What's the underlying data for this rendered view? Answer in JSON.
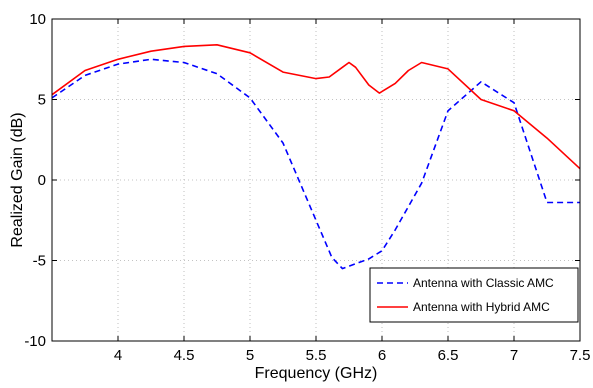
{
  "chart_data": {
    "type": "line",
    "title": "",
    "xlabel": "Frequency (GHz)",
    "ylabel": "Realized Gain (dB)",
    "xlim": [
      3.5,
      7.5
    ],
    "ylim": [
      -10,
      10
    ],
    "xticks": [
      "4",
      "4.5",
      "5",
      "5.5",
      "6",
      "6.5",
      "7",
      "7.5"
    ],
    "yticks": [
      "10",
      "5",
      "0",
      "-5",
      "-10"
    ],
    "grid": true,
    "legend_position": "bottom-right",
    "series": [
      {
        "name": "Antenna with Classic AMC",
        "color": "#0000ff",
        "dash": "dashed",
        "x": [
          3.5,
          3.75,
          4.0,
          4.25,
          4.5,
          4.75,
          5.0,
          5.25,
          5.5,
          5.62,
          5.7,
          5.8,
          5.9,
          6.0,
          6.1,
          6.3,
          6.5,
          6.75,
          7.0,
          7.25,
          7.5
        ],
        "y": [
          5.1,
          6.5,
          7.2,
          7.5,
          7.3,
          6.6,
          5.1,
          2.3,
          -2.5,
          -4.8,
          -5.5,
          -5.2,
          -4.9,
          -4.4,
          -3.1,
          -0.2,
          4.3,
          6.1,
          4.8,
          -1.4,
          -1.4
        ]
      },
      {
        "name": "Antenna with Hybrid AMC",
        "color": "#ff0000",
        "dash": "solid",
        "x": [
          3.5,
          3.75,
          4.0,
          4.25,
          4.5,
          4.75,
          5.0,
          5.25,
          5.5,
          5.6,
          5.7,
          5.75,
          5.8,
          5.9,
          5.98,
          6.1,
          6.2,
          6.3,
          6.5,
          6.75,
          7.0,
          7.25,
          7.5
        ],
        "y": [
          5.3,
          6.8,
          7.5,
          8.0,
          8.3,
          8.4,
          7.9,
          6.7,
          6.3,
          6.4,
          7.0,
          7.3,
          7.0,
          5.9,
          5.4,
          6.0,
          6.8,
          7.3,
          6.9,
          5.0,
          4.3,
          2.6,
          0.7
        ]
      }
    ]
  }
}
